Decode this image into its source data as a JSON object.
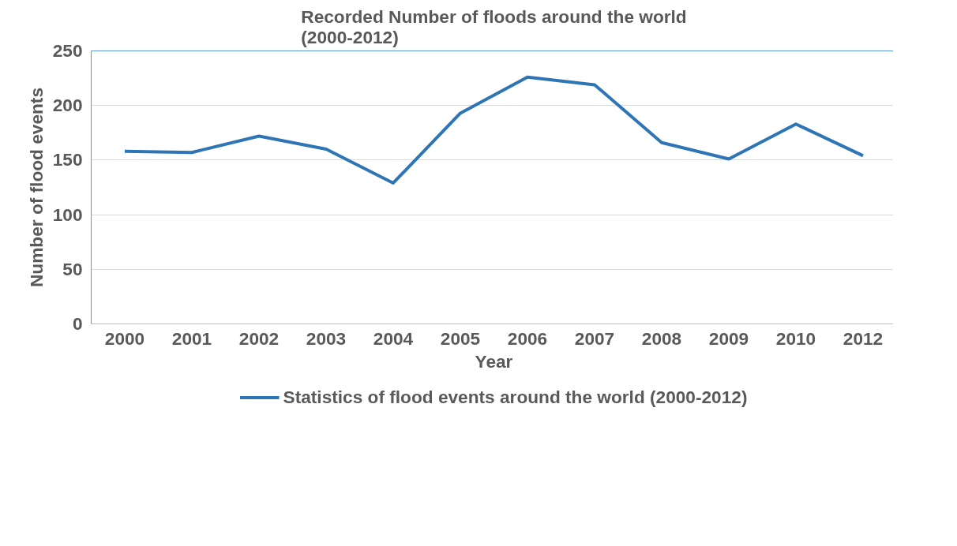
{
  "chart_data": {
    "type": "line",
    "title": "Recorded Number of floods around the world\n(2000-2012)",
    "xlabel": "Year",
    "ylabel": "Number of flood events",
    "categories": [
      "2000",
      "2001",
      "2002",
      "2003",
      "2004",
      "2005",
      "2006",
      "2007",
      "2008",
      "2009",
      "2010",
      "2012"
    ],
    "series": [
      {
        "name": "Statistics of flood events around the world (2000-2012)",
        "color": "#2e75b6",
        "values": [
          158,
          157,
          172,
          160,
          129,
          193,
          226,
          219,
          166,
          151,
          183,
          154
        ]
      }
    ],
    "ylim": [
      0,
      250
    ],
    "yticks": [
      0,
      50,
      100,
      150,
      200,
      250
    ],
    "grid": "y",
    "legend": "bottom",
    "marker": "none",
    "line_style": "solid"
  }
}
